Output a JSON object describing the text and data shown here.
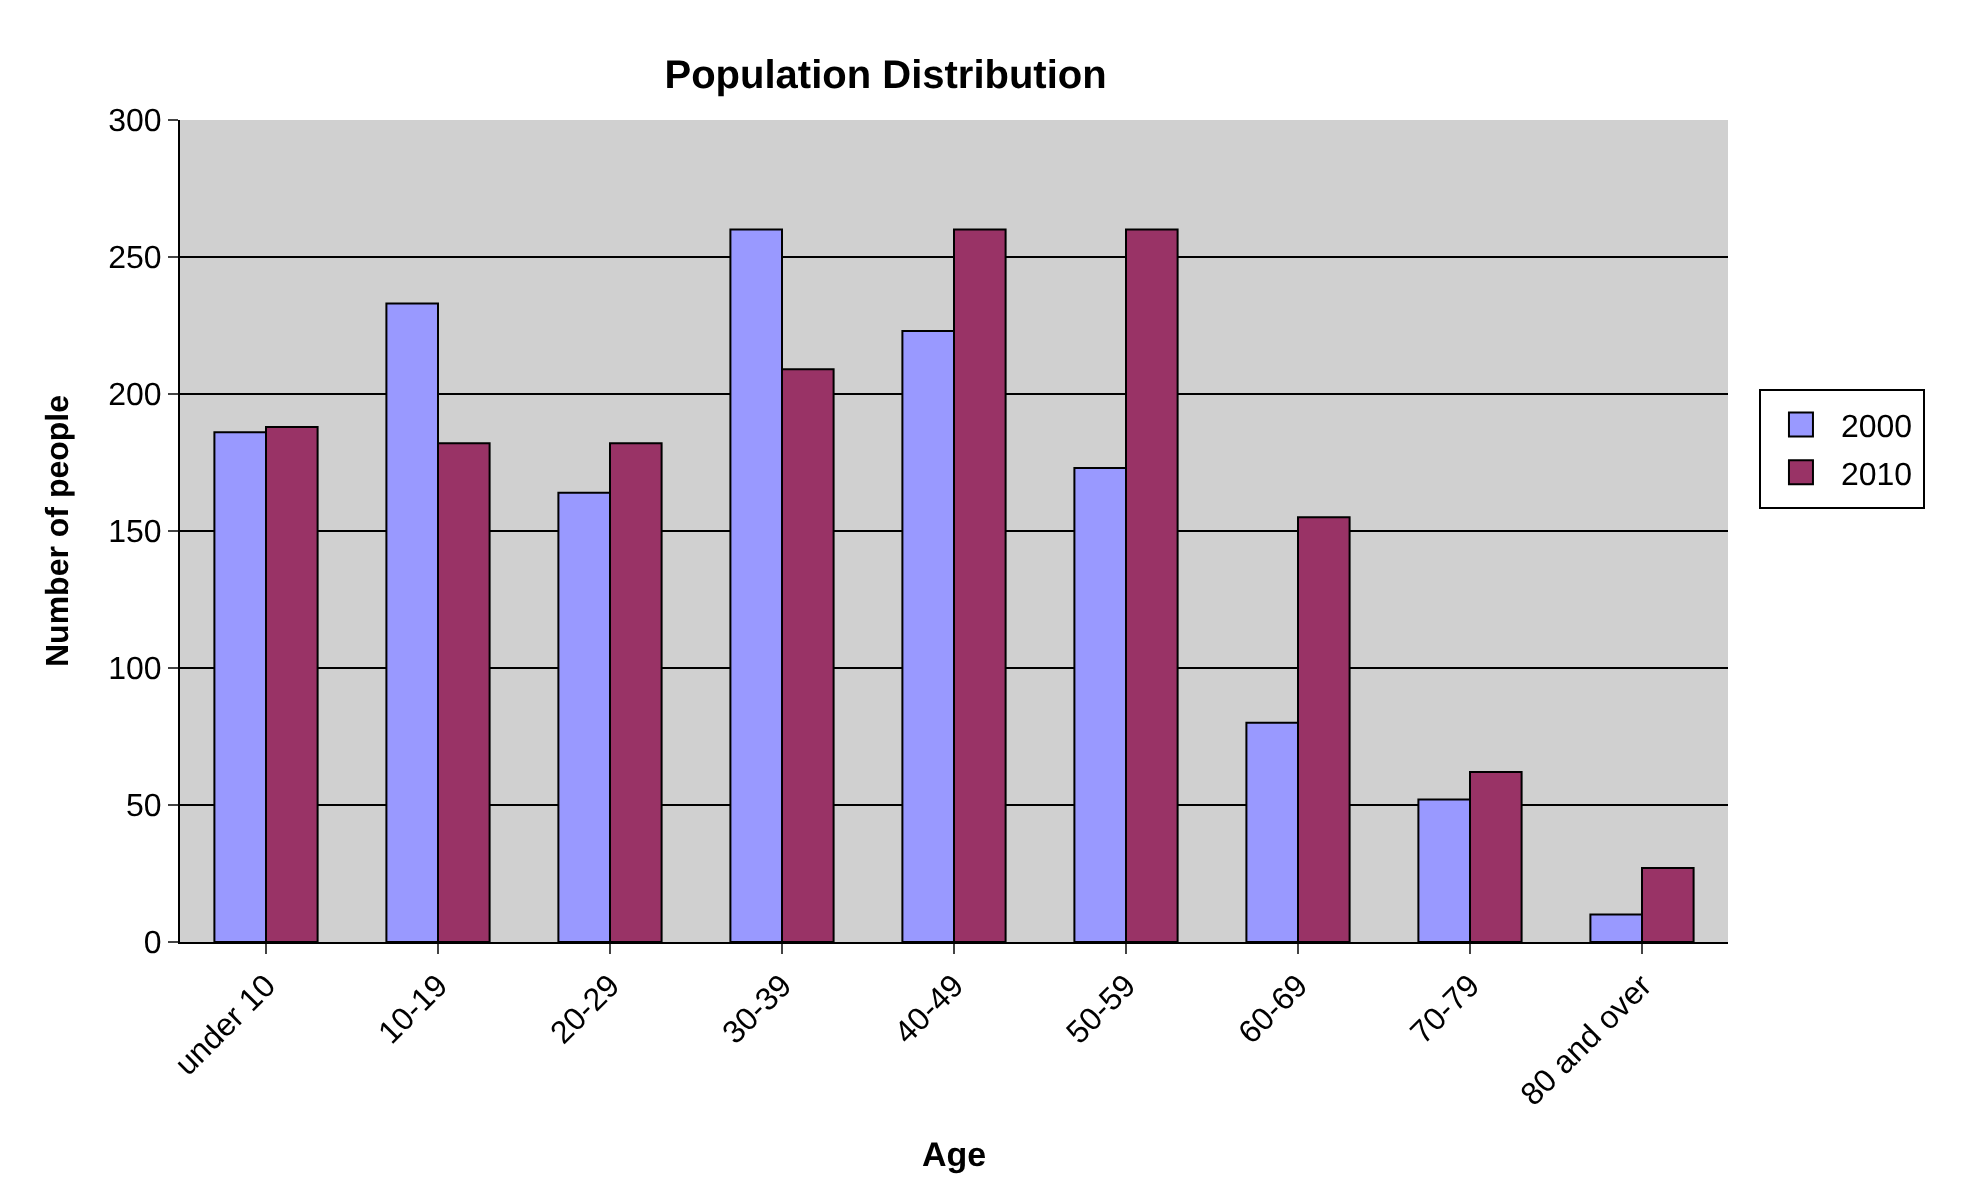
{
  "chart_data": {
    "type": "bar",
    "title": "Population Distribution",
    "xlabel": "Age",
    "ylabel": "Number of people",
    "categories": [
      "under 10",
      "10-19",
      "20-29",
      "30-39",
      "40-49",
      "50-59",
      "60-69",
      "70-79",
      "80 and over"
    ],
    "series": [
      {
        "name": "2000",
        "color": "#9999ff",
        "values": [
          186,
          233,
          164,
          260,
          223,
          173,
          80,
          52,
          10
        ]
      },
      {
        "name": "2010",
        "color": "#993366",
        "values": [
          188,
          182,
          182,
          209,
          260,
          260,
          155,
          62,
          27
        ]
      }
    ],
    "ylim": [
      0,
      300
    ],
    "yticks": [
      0,
      50,
      100,
      150,
      200,
      250,
      300
    ],
    "grid": "y",
    "legend": "right"
  }
}
